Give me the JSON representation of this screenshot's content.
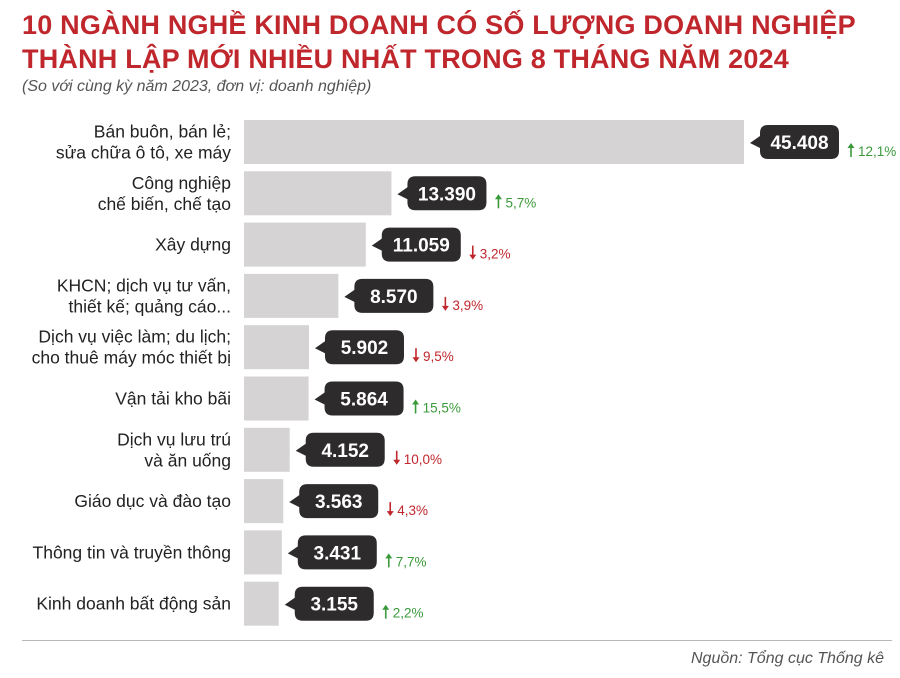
{
  "title_line1": "10 NGÀNH NGHỀ KINH DOANH CÓ SỐ LƯỢNG DOANH NGHIỆP",
  "title_line2": "THÀNH LẬP MỚI NHIỀU NHẤT TRONG 8 THÁNG NĂM 2024",
  "subtitle": "(So với cùng kỳ năm 2023, đơn vị: doanh nghiệp)",
  "source": "Nguồn: Tổng cục Thống kê",
  "colors": {
    "title": "#c0272d",
    "bar": "#d5d3d4",
    "bubble": "#2e2b2c",
    "up": "#3a9a3a",
    "down": "#c0272d"
  },
  "chart_data": {
    "type": "bar",
    "orientation": "horizontal",
    "categories": [
      [
        "Bán buôn, bán lẻ;",
        "sửa chữa ô tô, xe máy"
      ],
      [
        "Công nghiệp",
        "chế biến, chế tạo"
      ],
      [
        "Xây dựng"
      ],
      [
        "KHCN; dịch vụ tư vấn,",
        "thiết kế; quảng cáo..."
      ],
      [
        "Dịch vụ việc làm; du lịch;",
        "cho thuê máy móc thiết bị"
      ],
      [
        "Vận tải kho bãi"
      ],
      [
        "Dịch vụ lưu trú",
        "và ăn uống"
      ],
      [
        "Giáo dục và đào tạo"
      ],
      [
        "Thông tin và truyền thông"
      ],
      [
        "Kinh doanh bất động sản"
      ]
    ],
    "values": [
      45408,
      13390,
      11059,
      8570,
      5902,
      5864,
      4152,
      3563,
      3431,
      3155
    ],
    "value_labels": [
      "45.408",
      "13.390",
      "11.059",
      "8.570",
      "5.902",
      "5.864",
      "4.152",
      "3.563",
      "3.431",
      "3.155"
    ],
    "changes": [
      {
        "direction": "up",
        "label": "12,1%"
      },
      {
        "direction": "up",
        "label": "5,7%"
      },
      {
        "direction": "down",
        "label": "3,2%"
      },
      {
        "direction": "down",
        "label": "3,9%"
      },
      {
        "direction": "down",
        "label": "9,5%"
      },
      {
        "direction": "up",
        "label": "15,5%"
      },
      {
        "direction": "down",
        "label": "10,0%"
      },
      {
        "direction": "down",
        "label": "4,3%"
      },
      {
        "direction": "up",
        "label": "7,7%"
      },
      {
        "direction": "up",
        "label": "2,2%"
      }
    ],
    "xlim": [
      0,
      45408
    ],
    "grid": false,
    "legend": "none"
  }
}
